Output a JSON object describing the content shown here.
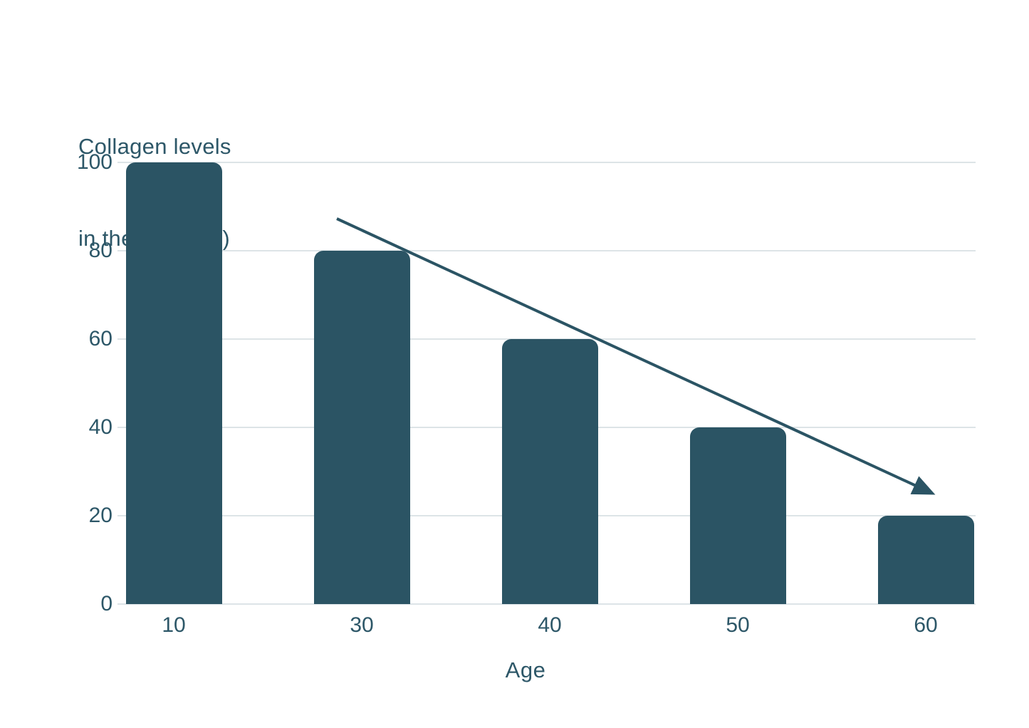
{
  "title": {
    "line1": "Collagen levels",
    "line2": "in the body (%)"
  },
  "xaxis_label": "Age",
  "colors": {
    "bar": "#2b5464",
    "text": "#2d5768",
    "gridline": "#dde4e7",
    "arrow": "#2b5464",
    "background": "#ffffff"
  },
  "chart_data": {
    "type": "bar",
    "categories": [
      "10",
      "30",
      "40",
      "50",
      "60"
    ],
    "values": [
      100,
      80,
      60,
      40,
      20
    ],
    "title": "Collagen levels in the body (%)",
    "xlabel": "Age",
    "ylabel": "Collagen levels in the body (%)",
    "ylim": [
      0,
      100
    ],
    "yticks": [
      0,
      20,
      40,
      60,
      80,
      100
    ],
    "grid": true,
    "legend": false,
    "annotations": [
      {
        "type": "arrow",
        "description": "downward trend arrow across bar tops",
        "from_xy": [
          "age ~28",
          87
        ],
        "to_xy": [
          "age ~60",
          25
        ]
      }
    ]
  }
}
